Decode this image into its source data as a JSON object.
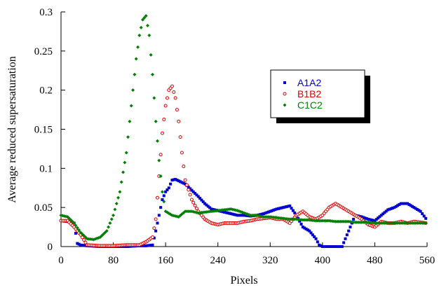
{
  "chart_data": {
    "type": "scatter",
    "title": "",
    "xlabel": "Pixels",
    "ylabel": "Average reduced supersaturation",
    "xlim": [
      0,
      560
    ],
    "ylim": [
      0,
      0.3
    ],
    "xticks": [
      "0",
      "80",
      "160",
      "240",
      "320",
      "400",
      "480",
      "560"
    ],
    "yticks": [
      "0",
      "0.05",
      "0.1",
      "0.15",
      "0.2",
      "0.25",
      "0.3"
    ],
    "grid": false,
    "legend_position": "upper-right",
    "series": [
      {
        "name": "A1A2",
        "color": "#0000d0",
        "marker": "square",
        "x": [
          0,
          10,
          20,
          25,
          30,
          40,
          60,
          80,
          100,
          120,
          130,
          140,
          145,
          150,
          155,
          160,
          165,
          170,
          175,
          180,
          190,
          200,
          210,
          220,
          230,
          240,
          250,
          260,
          270,
          280,
          290,
          300,
          310,
          320,
          330,
          340,
          350,
          360,
          370,
          380,
          390,
          395,
          400,
          410,
          420,
          430,
          440,
          450,
          460,
          470,
          480,
          490,
          500,
          510,
          520,
          530,
          540,
          550,
          558
        ],
        "y": [
          0.033,
          0.032,
          0.03,
          0.004,
          0.002,
          0.001,
          0.0,
          0.0,
          0.0,
          0.001,
          0.001,
          0.002,
          0.02,
          0.04,
          0.06,
          0.07,
          0.075,
          0.085,
          0.086,
          0.084,
          0.08,
          0.072,
          0.064,
          0.055,
          0.048,
          0.046,
          0.044,
          0.042,
          0.04,
          0.04,
          0.039,
          0.04,
          0.042,
          0.045,
          0.048,
          0.05,
          0.052,
          0.04,
          0.025,
          0.02,
          0.01,
          0.002,
          0.0,
          0.0,
          0.0,
          0.0,
          0.02,
          0.04,
          0.038,
          0.035,
          0.033,
          0.04,
          0.047,
          0.05,
          0.055,
          0.055,
          0.05,
          0.045,
          0.036
        ]
      },
      {
        "name": "B1B2",
        "color": "#e00000",
        "marker": "circle",
        "x": [
          0,
          10,
          20,
          30,
          40,
          60,
          80,
          100,
          120,
          130,
          140,
          145,
          150,
          155,
          160,
          165,
          170,
          175,
          180,
          185,
          190,
          200,
          210,
          220,
          230,
          240,
          250,
          260,
          270,
          280,
          290,
          300,
          310,
          320,
          330,
          340,
          350,
          360,
          370,
          380,
          390,
          400,
          410,
          420,
          430,
          440,
          450,
          460,
          470,
          480,
          490,
          500,
          510,
          520,
          530,
          540,
          550,
          558
        ],
        "y": [
          0.033,
          0.033,
          0.025,
          0.015,
          0.002,
          0.001,
          0.001,
          0.002,
          0.002,
          0.006,
          0.012,
          0.035,
          0.09,
          0.145,
          0.18,
          0.2,
          0.205,
          0.19,
          0.16,
          0.12,
          0.085,
          0.06,
          0.045,
          0.035,
          0.03,
          0.028,
          0.03,
          0.03,
          0.03,
          0.032,
          0.033,
          0.035,
          0.036,
          0.037,
          0.035,
          0.035,
          0.03,
          0.04,
          0.045,
          0.038,
          0.035,
          0.04,
          0.05,
          0.055,
          0.05,
          0.045,
          0.04,
          0.035,
          0.028,
          0.025,
          0.032,
          0.03,
          0.03,
          0.032,
          0.03,
          0.032,
          0.031,
          0.03
        ]
      },
      {
        "name": "C1C2",
        "color": "#008000",
        "marker": "diamond",
        "x": [
          0,
          10,
          20,
          30,
          40,
          50,
          60,
          70,
          80,
          90,
          100,
          105,
          110,
          115,
          120,
          125,
          130,
          135,
          140,
          145,
          150,
          155,
          160,
          170,
          180,
          190,
          200,
          210,
          220,
          230,
          240,
          250,
          260,
          270,
          280,
          290,
          300,
          310,
          320,
          330,
          340,
          350,
          360,
          370,
          380,
          390,
          400,
          410,
          420,
          430,
          440,
          450,
          460,
          470,
          480,
          490,
          500,
          510,
          520,
          530,
          540,
          550,
          558
        ],
        "y": [
          0.04,
          0.038,
          0.03,
          0.018,
          0.01,
          0.009,
          0.012,
          0.02,
          0.04,
          0.07,
          0.12,
          0.16,
          0.2,
          0.24,
          0.27,
          0.29,
          0.295,
          0.27,
          0.22,
          0.16,
          0.11,
          0.07,
          0.045,
          0.04,
          0.038,
          0.045,
          0.045,
          0.043,
          0.044,
          0.045,
          0.046,
          0.047,
          0.048,
          0.046,
          0.043,
          0.04,
          0.04,
          0.038,
          0.038,
          0.037,
          0.036,
          0.035,
          0.035,
          0.034,
          0.034,
          0.033,
          0.033,
          0.033,
          0.032,
          0.032,
          0.032,
          0.031,
          0.031,
          0.031,
          0.03,
          0.03,
          0.03,
          0.03,
          0.03,
          0.03,
          0.03,
          0.03,
          0.03
        ]
      }
    ]
  }
}
